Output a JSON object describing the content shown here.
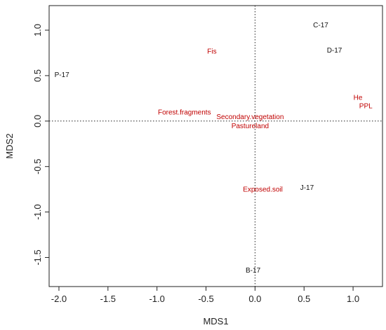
{
  "colors": {
    "site": "#111111",
    "variable": "#c00000",
    "axis": "#222222"
  },
  "chart_data": {
    "type": "scatter",
    "xlabel": "MDS1",
    "ylabel": "MDS2",
    "xlim": [
      -2.1,
      1.3
    ],
    "ylim": [
      -1.82,
      1.27
    ],
    "x_ticks": [
      -2.0,
      -1.5,
      -1.0,
      -0.5,
      0.0,
      0.5,
      1.0
    ],
    "x_tick_labels": [
      "-2.0",
      "-1.5",
      "-1.0",
      "-0.5",
      "0.0",
      "0.5",
      "1.0"
    ],
    "y_ticks": [
      1.0,
      0.5,
      0.0,
      -0.5,
      -1.0,
      -1.5
    ],
    "y_tick_labels": [
      "1.0",
      "0.5",
      "0.0",
      "-0.5",
      "-1.0",
      "-1.5"
    ],
    "reference_lines": {
      "x": 0,
      "y": 0,
      "style": "dotted"
    },
    "series": [
      {
        "name": "",
        "color": "#111111",
        "points": [
          {
            "label": "C-17",
            "x": 0.67,
            "y": 1.06
          },
          {
            "label": "D-17",
            "x": 0.81,
            "y": 0.78
          },
          {
            "label": "P-17",
            "x": -1.97,
            "y": 0.51
          },
          {
            "label": "J-17",
            "x": 0.53,
            "y": -0.73
          },
          {
            "label": "B-17",
            "x": -0.02,
            "y": -1.64
          }
        ]
      },
      {
        "name": "",
        "color": "#c00000",
        "points": [
          {
            "label": "Fis",
            "x": -0.44,
            "y": 0.77
          },
          {
            "label": "He",
            "x": 1.05,
            "y": 0.26
          },
          {
            "label": "PPL",
            "x": 1.13,
            "y": 0.17
          },
          {
            "label": "Forest.fragments",
            "x": -0.72,
            "y": 0.1
          },
          {
            "label": "Secondary.vegetation",
            "x": -0.05,
            "y": 0.05
          },
          {
            "label": "Pastureland",
            "x": -0.05,
            "y": -0.05
          },
          {
            "label": "Exposed.soil",
            "x": 0.08,
            "y": -0.75
          }
        ]
      }
    ]
  }
}
